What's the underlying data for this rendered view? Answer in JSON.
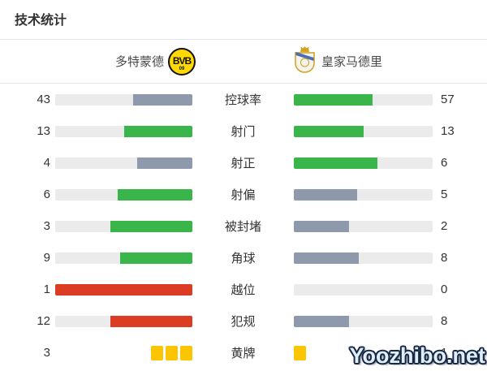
{
  "title": "技术统计",
  "teams": {
    "home": {
      "name": "多特蒙德",
      "logo": "bvb-badge",
      "logo_text": "BVB",
      "logo_sub": "09"
    },
    "away": {
      "name": "皇家马德里",
      "logo": "real-madrid-crest"
    }
  },
  "colors": {
    "green": "#3ab54a",
    "gray": "#8e9aab",
    "red": "#dc3c23",
    "yellow_card": "#fbc500",
    "track": "#ebebeb",
    "divider": "#e4e4e4",
    "bvb_yellow": "#ffd900",
    "text": "#333333",
    "watermark_fill": "#dfeefc",
    "watermark_outline": "#1a2742"
  },
  "rows": [
    {
      "label": "控球率",
      "type": "bar",
      "home": {
        "value": 43,
        "color": "gray"
      },
      "away": {
        "value": 57,
        "color": "green"
      }
    },
    {
      "label": "射门",
      "type": "bar",
      "home": {
        "value": 13,
        "color": "green"
      },
      "away": {
        "value": 13,
        "color": "green"
      }
    },
    {
      "label": "射正",
      "type": "bar",
      "home": {
        "value": 4,
        "color": "gray"
      },
      "away": {
        "value": 6,
        "color": "green"
      }
    },
    {
      "label": "射偏",
      "type": "bar",
      "home": {
        "value": 6,
        "color": "green"
      },
      "away": {
        "value": 5,
        "color": "gray"
      }
    },
    {
      "label": "被封堵",
      "type": "bar",
      "home": {
        "value": 3,
        "color": "green"
      },
      "away": {
        "value": 2,
        "color": "gray"
      }
    },
    {
      "label": "角球",
      "type": "bar",
      "home": {
        "value": 9,
        "color": "green"
      },
      "away": {
        "value": 8,
        "color": "gray"
      }
    },
    {
      "label": "越位",
      "type": "bar",
      "home": {
        "value": 1,
        "color": "red"
      },
      "away": {
        "value": 0,
        "color": "none"
      }
    },
    {
      "label": "犯规",
      "type": "bar",
      "home": {
        "value": 12,
        "color": "red"
      },
      "away": {
        "value": 8,
        "color": "gray"
      }
    },
    {
      "label": "黄牌",
      "type": "cards",
      "home": {
        "value": 3,
        "color": "yellow"
      },
      "away": {
        "value": 1,
        "color": "yellow"
      }
    }
  ],
  "watermark": "Yoozhibo.net",
  "chart_data": {
    "type": "bar",
    "title": "技术统计",
    "orientation": "horizontal-paired",
    "categories": [
      "控球率",
      "射门",
      "射正",
      "射偏",
      "被封堵",
      "角球",
      "越位",
      "犯规",
      "黄牌"
    ],
    "series": [
      {
        "name": "多特蒙德",
        "values": [
          43,
          13,
          4,
          6,
          3,
          9,
          1,
          12,
          3
        ]
      },
      {
        "name": "皇家马德里",
        "values": [
          57,
          13,
          6,
          5,
          2,
          8,
          0,
          8,
          1
        ]
      }
    ],
    "notes": "bar fill fraction = value / (home+away); green = winning side, gray = losing side, red = negative stat (offside/fouls), yellow card icons for 黄牌"
  }
}
